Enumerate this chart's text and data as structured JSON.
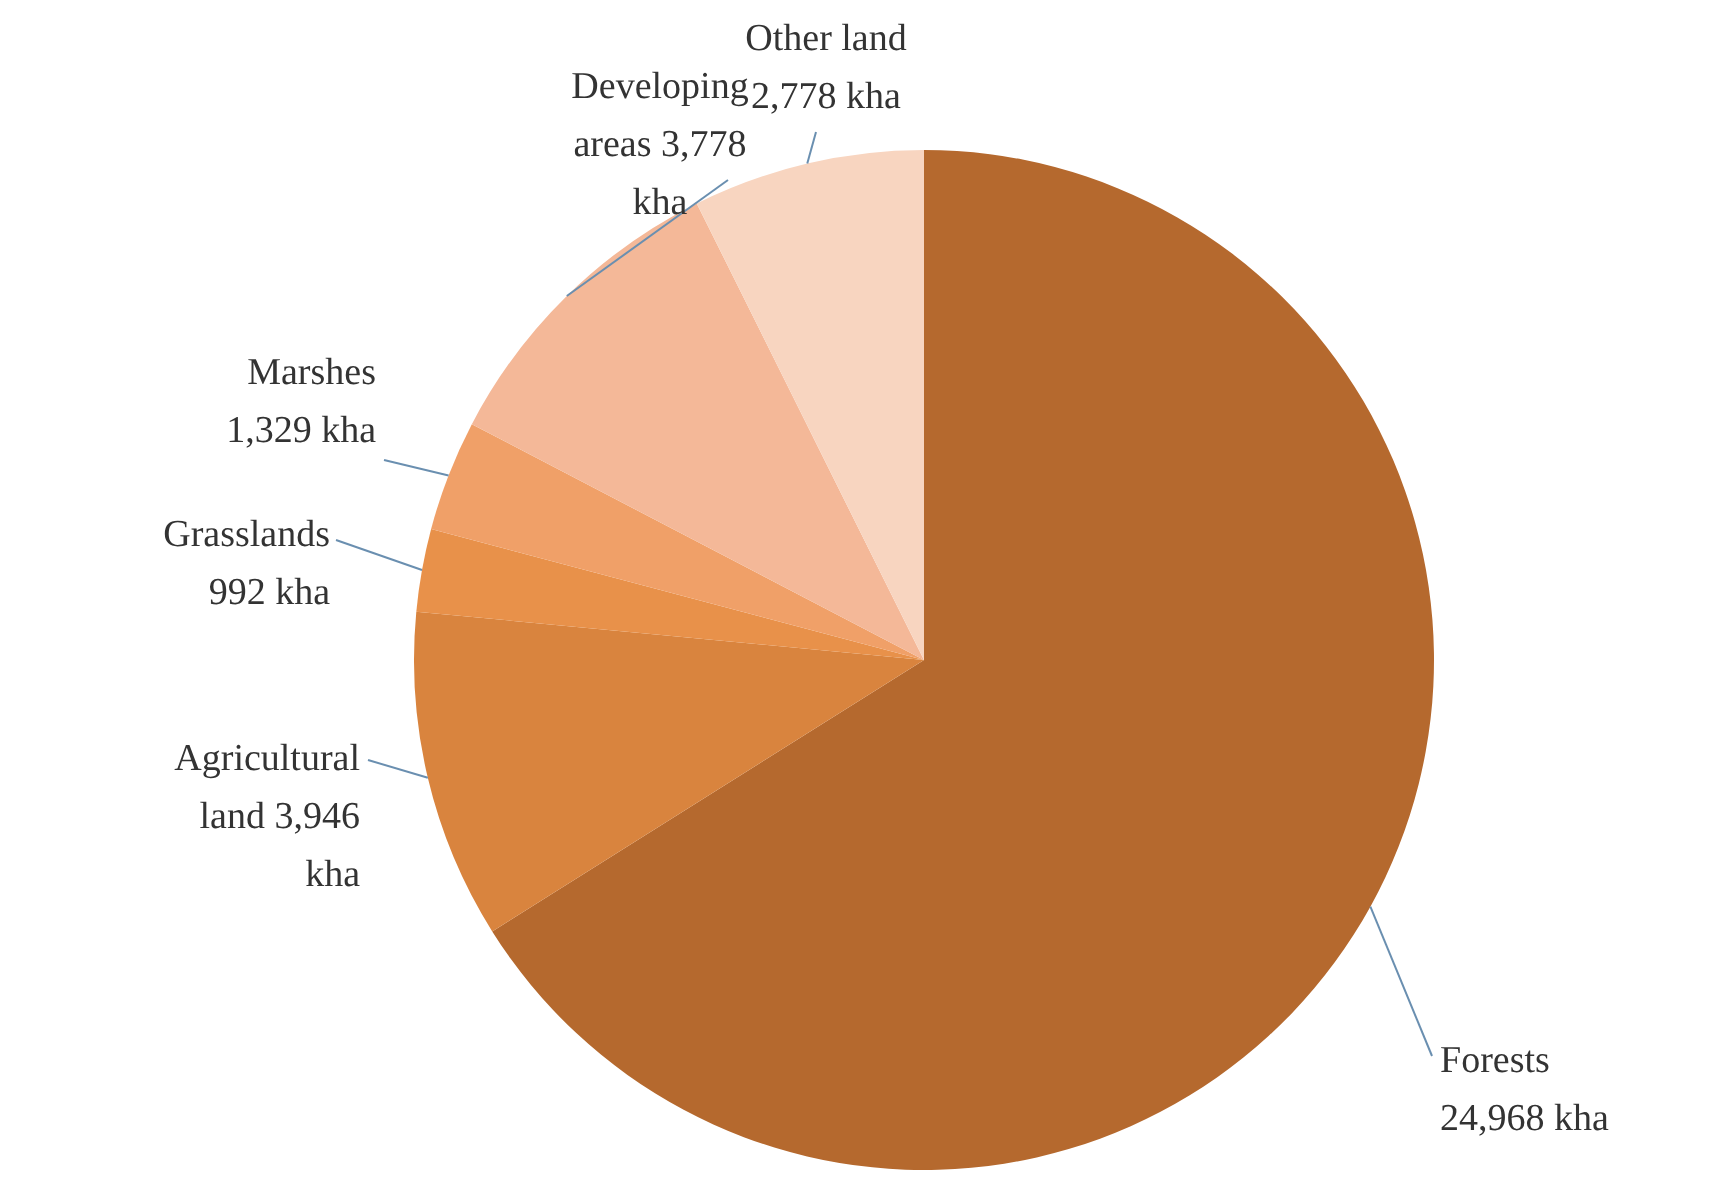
{
  "chart_data": {
    "type": "pie",
    "categories": [
      "Forests",
      "Agricultural land",
      "Grasslands",
      "Marshes",
      "Developing areas",
      "Other land"
    ],
    "values": [
      24968,
      3946,
      992,
      1329,
      3778,
      2778
    ],
    "value_labels": [
      "24,968 kha",
      "3,946 kha",
      "992 kha",
      "1,329 kha",
      "3,778 kha",
      "2,778 kha"
    ],
    "colors": [
      "#b5692e",
      "#d9843e",
      "#e8914a",
      "#f0a068",
      "#f4b898",
      "#f8d5c0"
    ],
    "legend": false
  }
}
